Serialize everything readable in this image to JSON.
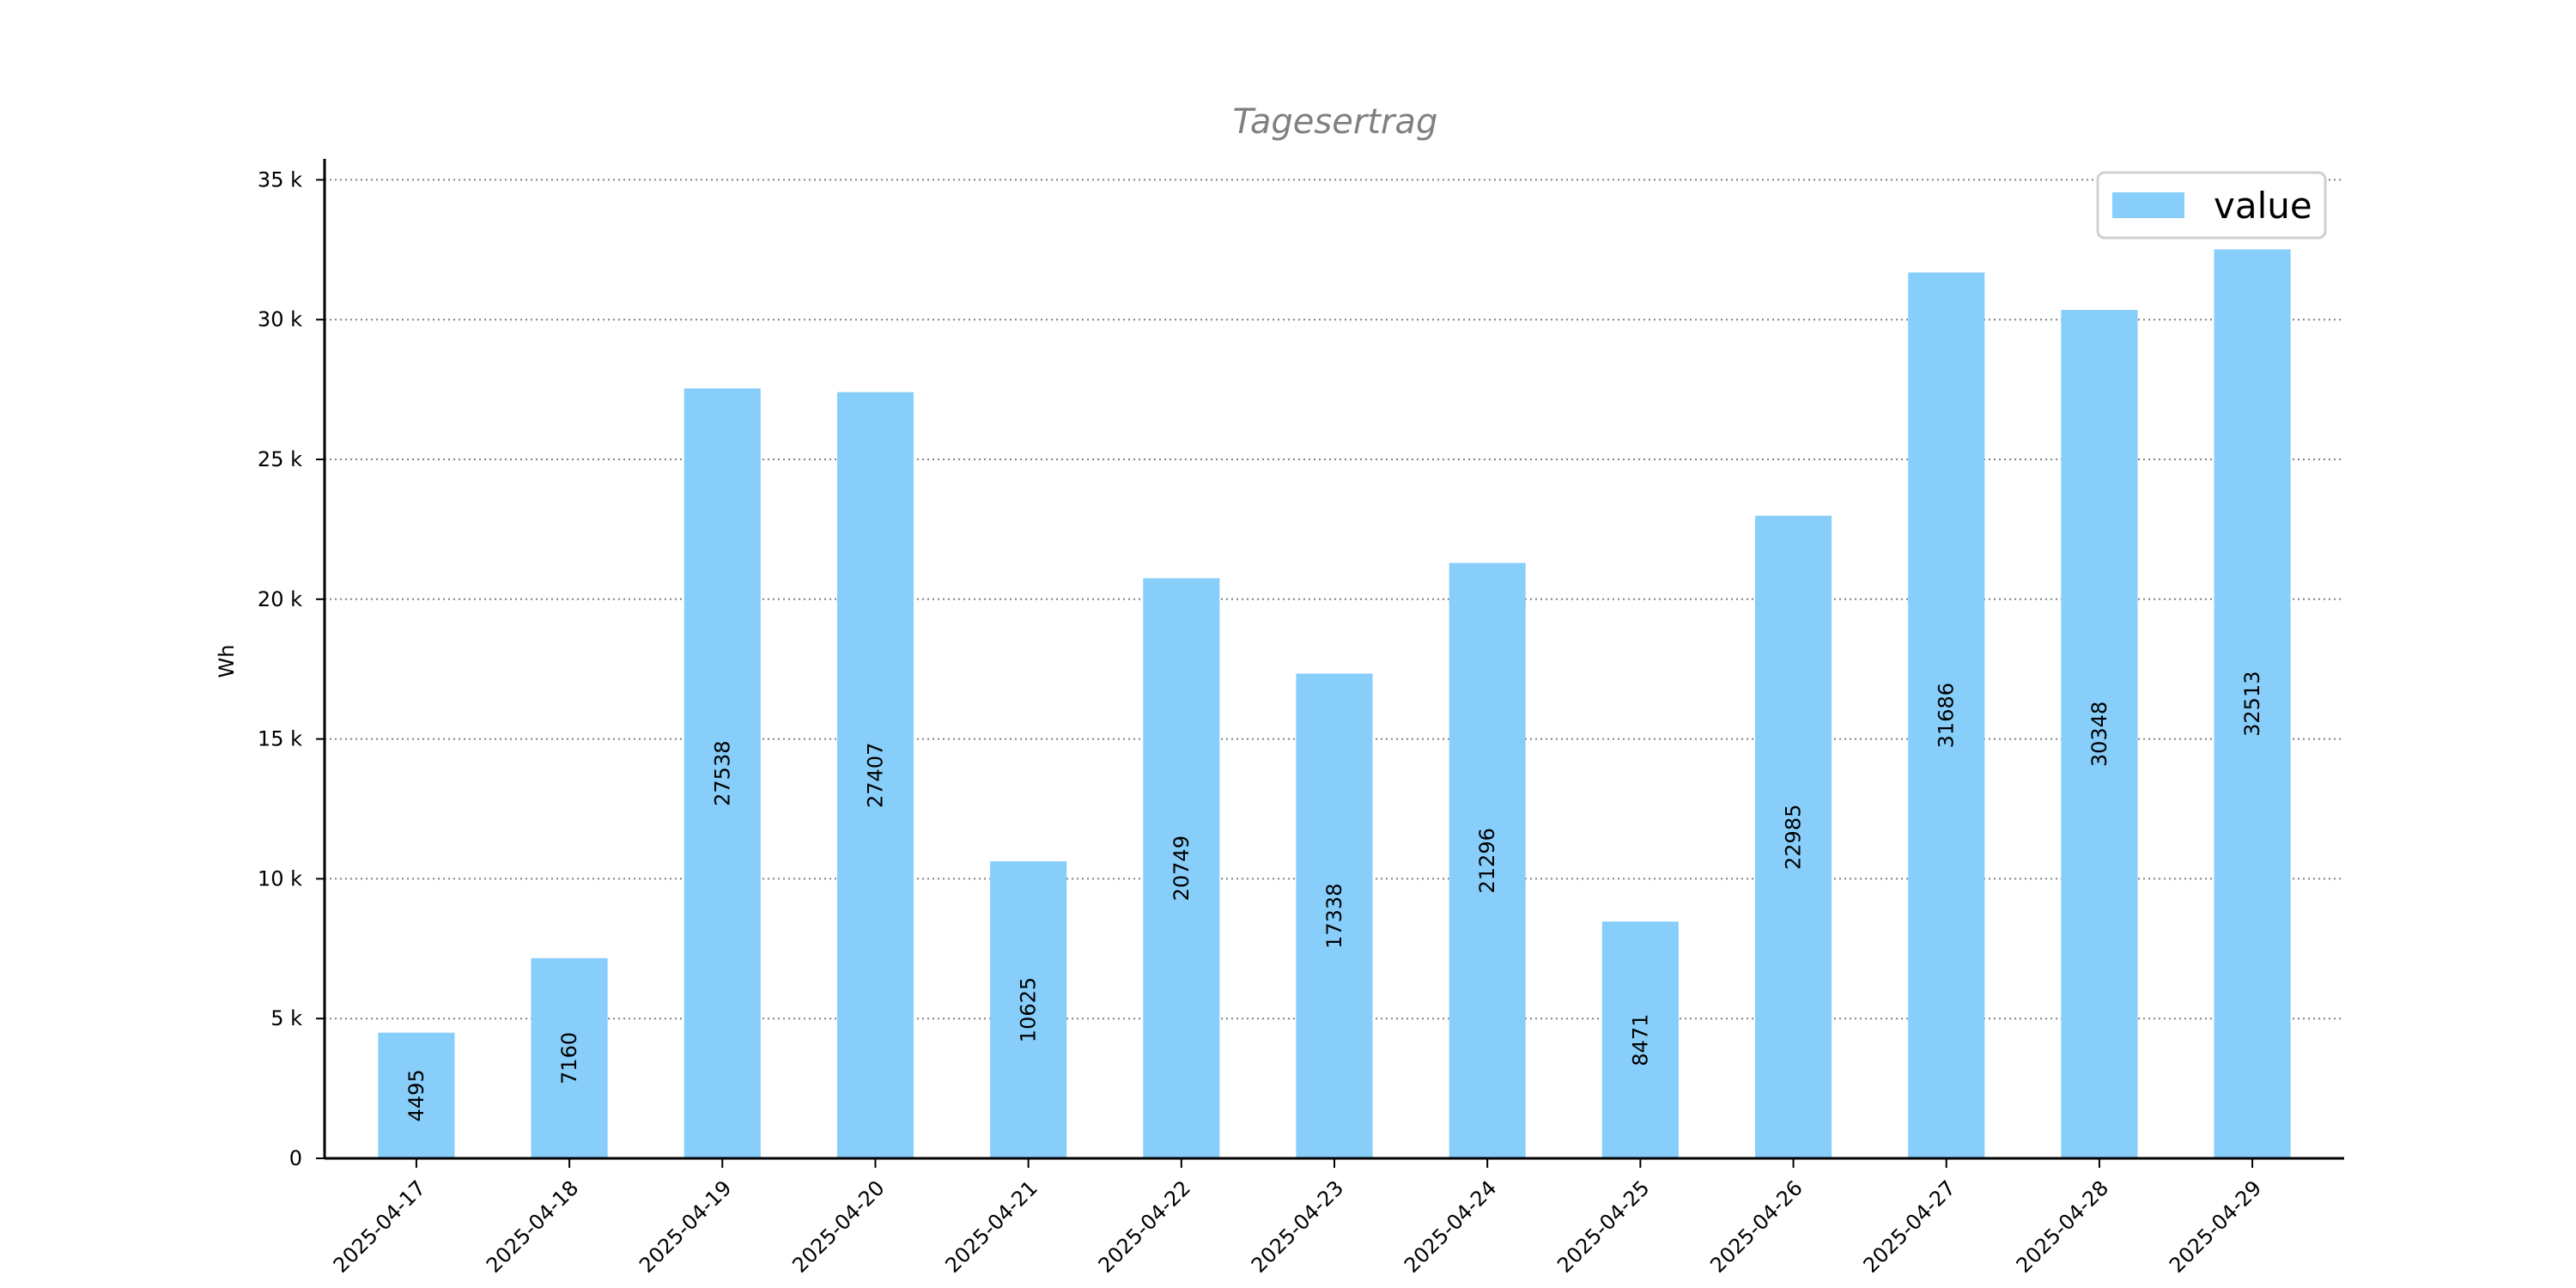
{
  "chart_data": {
    "type": "bar",
    "title": "Tagesertrag",
    "xlabel": "",
    "ylabel": "Wh",
    "ylim": [
      0,
      35750
    ],
    "yticks": [
      {
        "value": 0,
        "label": "0"
      },
      {
        "value": 5000,
        "label": "5 k"
      },
      {
        "value": 10000,
        "label": "10 k"
      },
      {
        "value": 15000,
        "label": "15 k"
      },
      {
        "value": 20000,
        "label": "20 k"
      },
      {
        "value": 25000,
        "label": "25 k"
      },
      {
        "value": 30000,
        "label": "30 k"
      },
      {
        "value": 35000,
        "label": "35 k"
      }
    ],
    "grid": "horizontal-dotted",
    "legend_position": "top-right",
    "bar_color": "#87CEFA",
    "categories": [
      "2025-04-17",
      "2025-04-18",
      "2025-04-19",
      "2025-04-20",
      "2025-04-21",
      "2025-04-22",
      "2025-04-23",
      "2025-04-24",
      "2025-04-25",
      "2025-04-26",
      "2025-04-27",
      "2025-04-28",
      "2025-04-29"
    ],
    "series": [
      {
        "name": "value",
        "values": [
          4495,
          7160,
          27538,
          27407,
          10625,
          20749,
          17338,
          21296,
          8471,
          22985,
          31686,
          30348,
          32513
        ],
        "labels": [
          "4495",
          "7160",
          "27538",
          "27407",
          "10625",
          "20749",
          "17338",
          "21296",
          "8471",
          "22985",
          "31686",
          "30348",
          "32513"
        ]
      }
    ]
  }
}
